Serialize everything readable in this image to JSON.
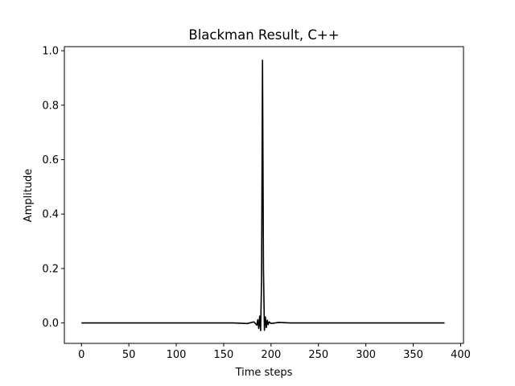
{
  "chart_data": {
    "type": "line",
    "title": "Blackman Result, C++",
    "xlabel": "Time steps",
    "ylabel": "Amplitude",
    "xlim": [
      -18,
      403
    ],
    "ylim": [
      -0.075,
      1.015
    ],
    "xticks": [
      0,
      50,
      100,
      150,
      200,
      250,
      300,
      350,
      400
    ],
    "xtick_labels": [
      "0",
      "50",
      "100",
      "150",
      "200",
      "250",
      "300",
      "350",
      "400"
    ],
    "yticks": [
      0.0,
      0.2,
      0.4,
      0.6,
      0.8,
      1.0
    ],
    "ytick_labels": [
      "0.0",
      "0.2",
      "0.4",
      "0.6",
      "0.8",
      "1.0"
    ],
    "grid": false,
    "line_color": "#000000",
    "series": [
      {
        "x": [
          0,
          100,
          160,
          175,
          182,
          185,
          186,
          187,
          188,
          189,
          190,
          191,
          192,
          193,
          194,
          195,
          196,
          197,
          198,
          200,
          208,
          220,
          383
        ],
        "values": [
          0.0,
          0.0,
          0.0,
          -0.002,
          0.004,
          -0.008,
          0.012,
          -0.02,
          0.025,
          -0.028,
          0.16,
          0.965,
          0.2,
          -0.027,
          0.022,
          -0.017,
          0.01,
          -0.006,
          0.004,
          -0.002,
          0.002,
          0.0,
          0.0
        ]
      }
    ]
  }
}
